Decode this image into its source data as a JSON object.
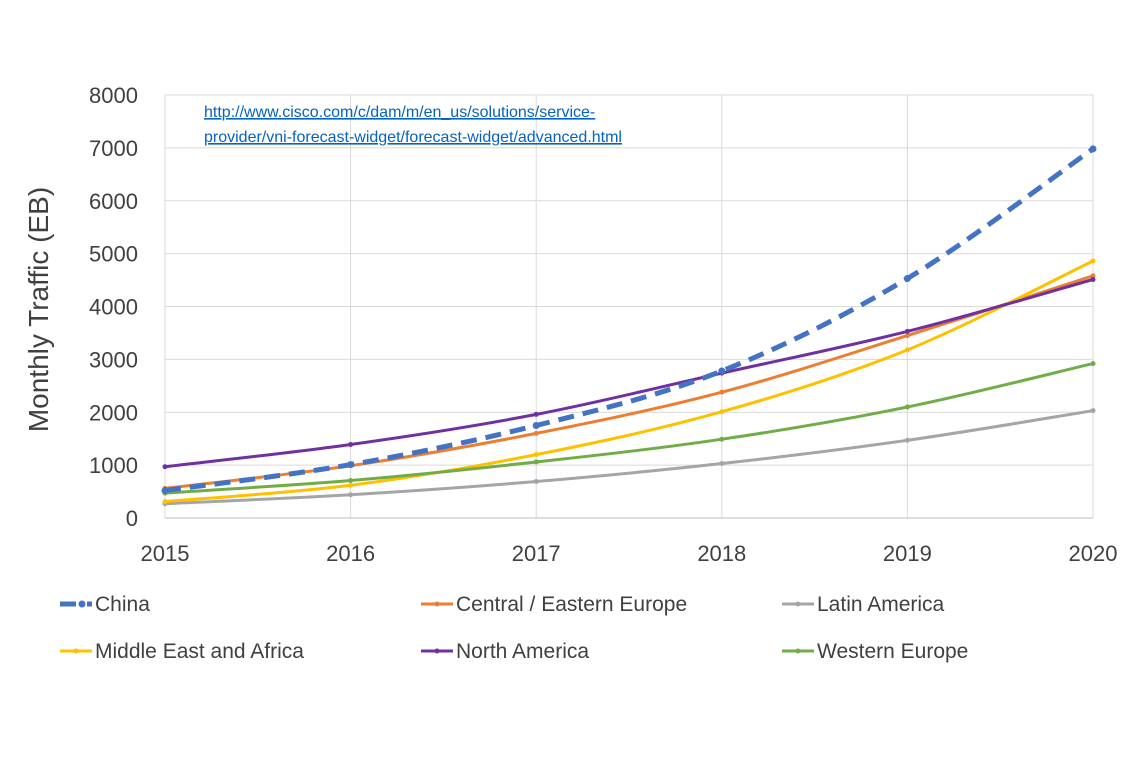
{
  "chart_data": {
    "type": "line",
    "title": "",
    "xlabel": "",
    "ylabel": "Monthly Traffic (EB)",
    "x": [
      2015,
      2016,
      2017,
      2018,
      2019,
      2020
    ],
    "x_tick_labels": [
      "2015",
      "2016",
      "2017",
      "2018",
      "2019",
      "2020"
    ],
    "ylim": [
      0,
      8000
    ],
    "y_ticks": [
      0,
      1000,
      2000,
      3000,
      4000,
      5000,
      6000,
      7000,
      8000
    ],
    "y_tick_labels": [
      "0",
      "1000",
      "2000",
      "3000",
      "4000",
      "5000",
      "6000",
      "7000",
      "8000"
    ],
    "grid": true,
    "legend_position": "bottom",
    "annotation": {
      "lines": [
        "http://www.cisco.com/c/dam/m/en_us/solutions/service-",
        "provider/vni-forecast-widget/forecast-widget/advanced.html"
      ]
    },
    "series": [
      {
        "name": "China",
        "color": "#4472C4",
        "dashed": true,
        "values": [
          520,
          1010,
          1750,
          2780,
          4530,
          6980
        ]
      },
      {
        "name": "Central / Eastern Europe",
        "color": "#ED7D31",
        "dashed": false,
        "values": [
          560,
          990,
          1600,
          2380,
          3450,
          4580
        ]
      },
      {
        "name": "Latin America",
        "color": "#A5A5A5",
        "dashed": false,
        "values": [
          270,
          440,
          690,
          1030,
          1470,
          2030
        ]
      },
      {
        "name": "Middle East and Africa",
        "color": "#FFC000",
        "dashed": false,
        "values": [
          310,
          620,
          1200,
          2010,
          3180,
          4860
        ]
      },
      {
        "name": "North America",
        "color": "#7030A0",
        "dashed": false,
        "values": [
          970,
          1390,
          1960,
          2740,
          3530,
          4510
        ]
      },
      {
        "name": "Western Europe",
        "color": "#70AD47",
        "dashed": false,
        "values": [
          470,
          710,
          1060,
          1490,
          2100,
          2920
        ]
      }
    ]
  }
}
